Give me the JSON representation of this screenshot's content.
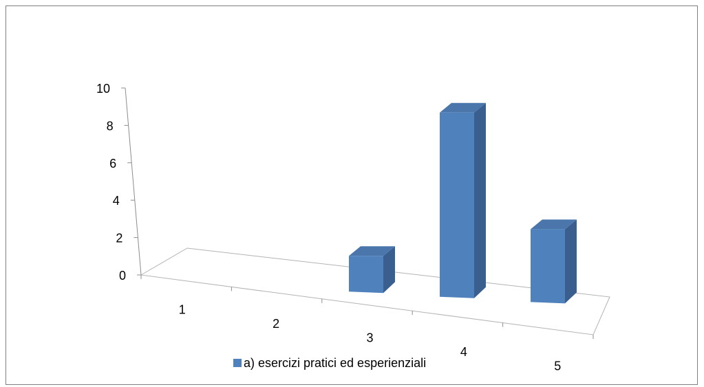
{
  "chart_data": {
    "type": "bar",
    "style": "3d",
    "categories": [
      "1",
      "2",
      "3",
      "4",
      "5"
    ],
    "series": [
      {
        "name": "a) esercizi pratici ed esperienziali",
        "values": [
          0,
          0,
          2,
          10,
          4
        ],
        "color": "#4f81bd"
      }
    ],
    "y_ticks": [
      "0",
      "2",
      "4",
      "6",
      "8",
      "10"
    ],
    "ylim": [
      0,
      10
    ],
    "grid": false,
    "legend_position": "bottom"
  }
}
